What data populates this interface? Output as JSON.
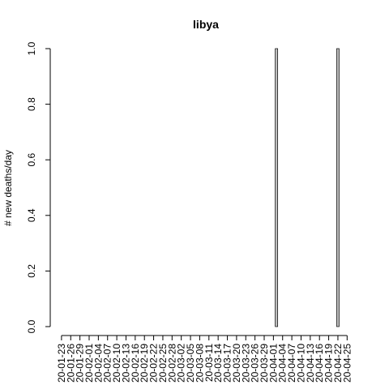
{
  "chart_data": {
    "type": "bar",
    "title": "libya",
    "xlabel": "",
    "ylabel": "# new deaths/day",
    "ylim": [
      0,
      1
    ],
    "yticks": [
      "0.0",
      "0.2",
      "0.4",
      "0.6",
      "0.8",
      "1.0"
    ],
    "grid": false,
    "legend": "none",
    "x_tick_labels": [
      "20-01-23",
      "20-01-26",
      "20-01-29",
      "20-02-01",
      "20-02-04",
      "20-02-07",
      "20-02-10",
      "20-02-13",
      "20-02-16",
      "20-02-19",
      "20-02-22",
      "20-02-25",
      "20-02-28",
      "20-03-02",
      "20-03-05",
      "20-03-08",
      "20-03-11",
      "20-03-14",
      "20-03-17",
      "20-03-20",
      "20-03-23",
      "20-03-26",
      "20-03-29",
      "20-04-01",
      "20-04-04",
      "20-04-07",
      "20-04-10",
      "20-04-13",
      "20-04-16",
      "20-04-19",
      "20-04-22",
      "20-04-25"
    ],
    "categories_start": "2020-01-23",
    "values": [
      0,
      0,
      0,
      0,
      0,
      0,
      0,
      0,
      0,
      0,
      0,
      0,
      0,
      0,
      0,
      0,
      0,
      0,
      0,
      0,
      0,
      0,
      0,
      0,
      0,
      0,
      0,
      0,
      0,
      0,
      0,
      0,
      0,
      0,
      0,
      0,
      0,
      0,
      0,
      0,
      0,
      0,
      0,
      0,
      0,
      0,
      0,
      0,
      0,
      0,
      0,
      0,
      0,
      0,
      0,
      0,
      0,
      0,
      0,
      0,
      0,
      0,
      0,
      0,
      0,
      0,
      0,
      0,
      0,
      0,
      1,
      0,
      0,
      0,
      0,
      0,
      0,
      0,
      0,
      0,
      0,
      0,
      0,
      0,
      0,
      0,
      0,
      0,
      0,
      0,
      1,
      0,
      0,
      0,
      0
    ],
    "colors": {
      "bar_fill": "#bebebe",
      "bar_stroke": "#000000",
      "axis": "#000000"
    }
  }
}
